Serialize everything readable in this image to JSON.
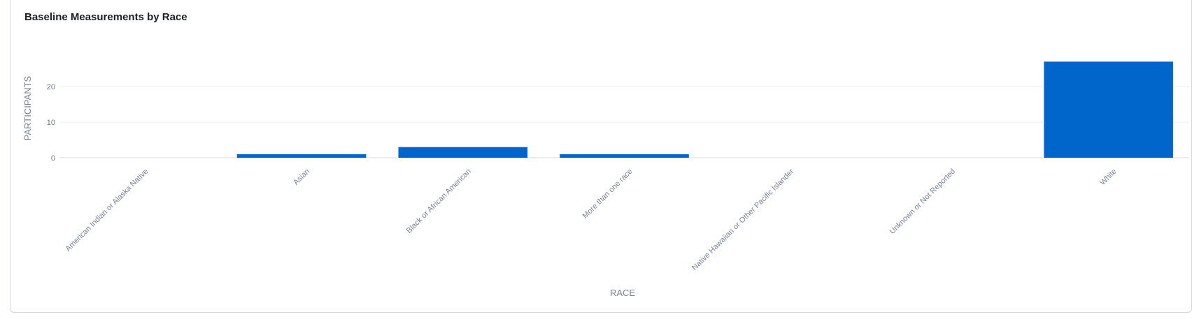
{
  "chart_data": {
    "type": "bar",
    "title": "Baseline Measurements by Race",
    "xlabel": "RACE",
    "ylabel": "PARTICIPANTS",
    "categories": [
      "American Indian or Alaska Native",
      "Asian",
      "Black or African American",
      "More than one race",
      "Native Hawaiian or Other Pacific Islander",
      "Unknown or Not Reported",
      "White"
    ],
    "values": [
      0,
      1,
      3,
      1,
      0,
      0,
      27
    ],
    "yticks": [
      0,
      10,
      20
    ],
    "ylim": [
      0,
      30
    ],
    "grid": true,
    "bar_color": "#0066cc"
  }
}
